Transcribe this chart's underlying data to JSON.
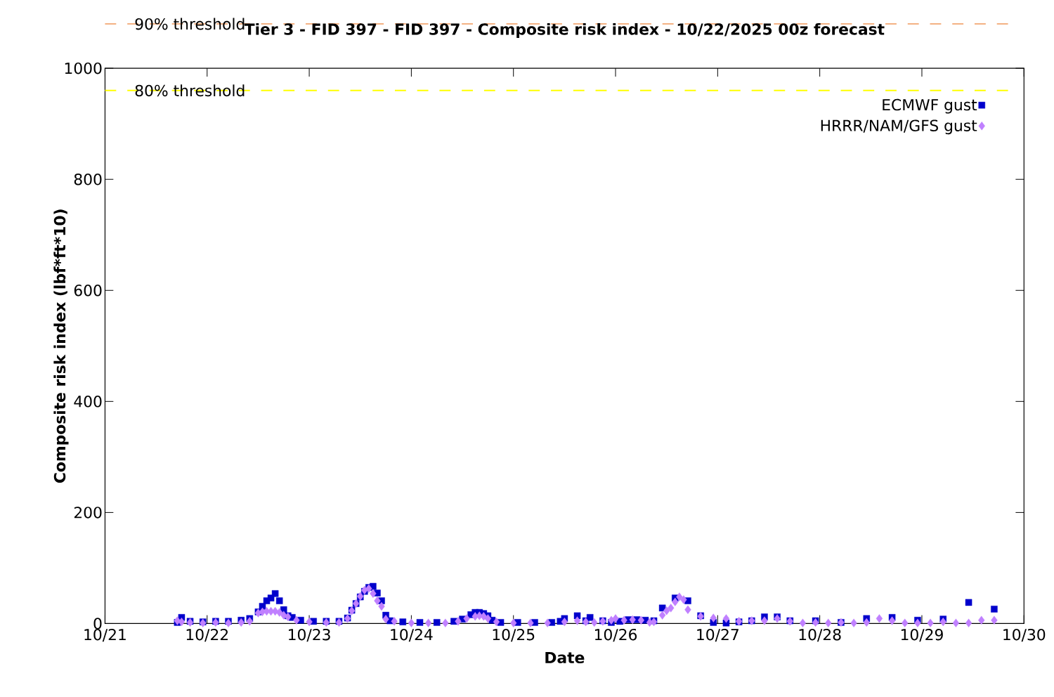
{
  "chart_data": {
    "type": "scatter",
    "title": "Tier 3 - FID 397 - FID 397 - Composite risk index - 10/22/2025 00z forecast",
    "xlabel": "Date",
    "ylabel": "Composite risk index (lbf*ft*10)",
    "xlim": [
      "2025-10-21",
      "2025-10-30"
    ],
    "xticks": [
      {
        "value": "2025-10-21",
        "label": "10/21"
      },
      {
        "value": "2025-10-22",
        "label": "10/22"
      },
      {
        "value": "2025-10-23",
        "label": "10/23"
      },
      {
        "value": "2025-10-24",
        "label": "10/24"
      },
      {
        "value": "2025-10-25",
        "label": "10/25"
      },
      {
        "value": "2025-10-26",
        "label": "10/26"
      },
      {
        "value": "2025-10-27",
        "label": "10/27"
      },
      {
        "value": "2025-10-28",
        "label": "10/28"
      },
      {
        "value": "2025-10-29",
        "label": "10/29"
      },
      {
        "value": "2025-10-30",
        "label": "10/30"
      }
    ],
    "ylim": [
      0,
      1000
    ],
    "yticks": [
      0,
      200,
      400,
      600,
      800,
      1000
    ],
    "grid": false,
    "legend": "top right",
    "ref_lines": [
      {
        "axis": "y",
        "value": 1080,
        "label": "90% threshold",
        "color": "#f4b183",
        "line_style": "dashed"
      },
      {
        "axis": "y",
        "value": 960,
        "label": "80% threshold",
        "color": "#ffff00",
        "line_style": "dashed"
      }
    ],
    "series": [
      {
        "name": "ECMWF gust",
        "color": "#0000cc",
        "marker": "square",
        "x": [
          "2025-10-21T17:00",
          "2025-10-21T18:00",
          "2025-10-21T20:00",
          "2025-10-21T23:00",
          "2025-10-22T02:00",
          "2025-10-22T05:00",
          "2025-10-22T08:00",
          "2025-10-22T10:00",
          "2025-10-22T12:00",
          "2025-10-22T13:00",
          "2025-10-22T14:00",
          "2025-10-22T15:00",
          "2025-10-22T16:00",
          "2025-10-22T17:00",
          "2025-10-22T18:00",
          "2025-10-22T19:00",
          "2025-10-22T20:00",
          "2025-10-22T22:00",
          "2025-10-23T01:00",
          "2025-10-23T04:00",
          "2025-10-23T07:00",
          "2025-10-23T09:00",
          "2025-10-23T10:00",
          "2025-10-23T11:00",
          "2025-10-23T12:00",
          "2025-10-23T13:00",
          "2025-10-23T14:00",
          "2025-10-23T15:00",
          "2025-10-23T16:00",
          "2025-10-23T17:00",
          "2025-10-23T18:00",
          "2025-10-23T19:00",
          "2025-10-23T22:00",
          "2025-10-24T02:00",
          "2025-10-24T06:00",
          "2025-10-24T10:00",
          "2025-10-24T12:00",
          "2025-10-24T14:00",
          "2025-10-24T15:00",
          "2025-10-24T16:00",
          "2025-10-24T17:00",
          "2025-10-24T18:00",
          "2025-10-24T19:00",
          "2025-10-24T21:00",
          "2025-10-25T01:00",
          "2025-10-25T05:00",
          "2025-10-25T09:00",
          "2025-10-25T11:00",
          "2025-10-25T12:00",
          "2025-10-25T15:00",
          "2025-10-25T17:00",
          "2025-10-25T18:00",
          "2025-10-25T21:00",
          "2025-10-25T23:00",
          "2025-10-26T01:00",
          "2025-10-26T03:00",
          "2025-10-26T05:00",
          "2025-10-26T07:00",
          "2025-10-26T09:00",
          "2025-10-26T11:00",
          "2025-10-26T14:00",
          "2025-10-26T17:00",
          "2025-10-26T20:00",
          "2025-10-26T23:00",
          "2025-10-27T02:00",
          "2025-10-27T05:00",
          "2025-10-27T08:00",
          "2025-10-27T11:00",
          "2025-10-27T14:00",
          "2025-10-27T17:00",
          "2025-10-27T23:00",
          "2025-10-28T05:00",
          "2025-10-28T11:00",
          "2025-10-28T17:00",
          "2025-10-28T23:00",
          "2025-10-29T05:00",
          "2025-10-29T11:00",
          "2025-10-29T17:00"
        ],
        "values": [
          2,
          11,
          4,
          3,
          4,
          4,
          6,
          9,
          21,
          31,
          41,
          46,
          54,
          41,
          25,
          14,
          11,
          6,
          4,
          4,
          4,
          10,
          24,
          36,
          48,
          58,
          65,
          67,
          55,
          41,
          15,
          5,
          3,
          2,
          2,
          4,
          8,
          16,
          20,
          20,
          18,
          14,
          6,
          2,
          2,
          2,
          2,
          4,
          9,
          14,
          5,
          11,
          5,
          2,
          4,
          7,
          7,
          6,
          5,
          28,
          46,
          41,
          14,
          2,
          1,
          3,
          5,
          12,
          12,
          5,
          5,
          2,
          9,
          11,
          6,
          8,
          38,
          26
        ]
      },
      {
        "name": "HRRR/NAM/GFS gust",
        "color": "#c080ff",
        "marker": "diamond",
        "x": [
          "2025-10-21T17:00",
          "2025-10-21T18:00",
          "2025-10-21T20:00",
          "2025-10-21T23:00",
          "2025-10-22T02:00",
          "2025-10-22T05:00",
          "2025-10-22T08:00",
          "2025-10-22T10:00",
          "2025-10-22T12:00",
          "2025-10-22T13:00",
          "2025-10-22T14:00",
          "2025-10-22T15:00",
          "2025-10-22T16:00",
          "2025-10-22T17:00",
          "2025-10-22T18:00",
          "2025-10-22T19:00",
          "2025-10-22T21:00",
          "2025-10-23T00:00",
          "2025-10-23T04:00",
          "2025-10-23T07:00",
          "2025-10-23T09:00",
          "2025-10-23T10:00",
          "2025-10-23T11:00",
          "2025-10-23T12:00",
          "2025-10-23T13:00",
          "2025-10-23T14:00",
          "2025-10-23T15:00",
          "2025-10-23T16:00",
          "2025-10-23T17:00",
          "2025-10-23T18:00",
          "2025-10-23T20:00",
          "2025-10-24T00:00",
          "2025-10-24T04:00",
          "2025-10-24T08:00",
          "2025-10-24T11:00",
          "2025-10-24T13:00",
          "2025-10-24T15:00",
          "2025-10-24T16:00",
          "2025-10-24T17:00",
          "2025-10-24T18:00",
          "2025-10-24T20:00",
          "2025-10-25T00:00",
          "2025-10-25T04:00",
          "2025-10-25T08:00",
          "2025-10-25T12:00",
          "2025-10-25T15:00",
          "2025-10-25T17:00",
          "2025-10-25T19:00",
          "2025-10-25T21:00",
          "2025-10-25T23:00",
          "2025-10-26T00:00",
          "2025-10-26T02:00",
          "2025-10-26T04:00",
          "2025-10-26T06:00",
          "2025-10-26T08:00",
          "2025-10-26T09:00",
          "2025-10-26T11:00",
          "2025-10-26T12:00",
          "2025-10-26T13:00",
          "2025-10-26T14:00",
          "2025-10-26T15:00",
          "2025-10-26T16:00",
          "2025-10-26T17:00",
          "2025-10-26T20:00",
          "2025-10-26T23:00",
          "2025-10-27T02:00",
          "2025-10-27T05:00",
          "2025-10-27T08:00",
          "2025-10-27T11:00",
          "2025-10-27T14:00",
          "2025-10-27T17:00",
          "2025-10-27T20:00",
          "2025-10-27T23:00",
          "2025-10-28T02:00",
          "2025-10-28T05:00",
          "2025-10-28T08:00",
          "2025-10-28T11:00",
          "2025-10-28T14:00",
          "2025-10-28T17:00",
          "2025-10-28T20:00",
          "2025-10-28T23:00",
          "2025-10-29T02:00",
          "2025-10-29T05:00",
          "2025-10-29T08:00",
          "2025-10-29T11:00",
          "2025-10-29T14:00",
          "2025-10-29T17:00"
        ],
        "values": [
          5,
          3,
          2,
          1,
          2,
          1,
          2,
          4,
          19,
          21,
          22,
          22,
          22,
          20,
          15,
          12,
          6,
          3,
          2,
          2,
          9,
          23,
          36,
          49,
          60,
          63,
          54,
          41,
          31,
          8,
          4,
          1,
          1,
          1,
          4,
          9,
          13,
          14,
          13,
          9,
          3,
          1,
          1,
          1,
          3,
          5,
          3,
          2,
          4,
          6,
          9,
          6,
          7,
          6,
          2,
          3,
          15,
          23,
          28,
          39,
          48,
          43,
          25,
          13,
          10,
          9,
          4,
          5,
          5,
          9,
          4,
          1,
          2,
          1,
          2,
          1,
          2,
          9,
          5,
          1,
          1,
          1,
          3,
          1,
          1,
          6,
          6
        ]
      }
    ]
  }
}
